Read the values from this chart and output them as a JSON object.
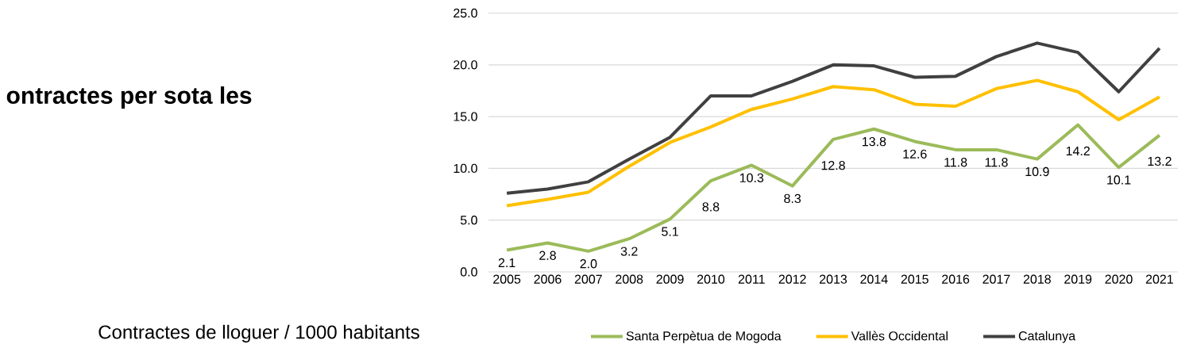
{
  "chart_data": {
    "type": "line",
    "categories": [
      "2005",
      "2006",
      "2007",
      "2008",
      "2009",
      "2010",
      "2011",
      "2012",
      "2013",
      "2014",
      "2015",
      "2016",
      "2017",
      "2018",
      "2019",
      "2020",
      "2021"
    ],
    "series": [
      {
        "name": "Santa Perpètua de Mogoda",
        "color": "#9bbb59",
        "values": [
          2.1,
          2.8,
          2.0,
          3.2,
          5.1,
          8.8,
          10.3,
          8.3,
          12.8,
          13.8,
          12.6,
          11.8,
          11.8,
          10.9,
          14.2,
          10.1,
          13.2
        ],
        "value_labels": [
          "2.1",
          "2.8",
          "2.0",
          "3.2",
          "5.1",
          "8.8",
          "10.3",
          "8.3",
          "12.8",
          "13.8",
          "12.6",
          "11.8",
          "11.8",
          "10.9",
          "14.2",
          "10.1",
          "13.2"
        ]
      },
      {
        "name": "Vallès Occidental",
        "color": "#ffc000",
        "values": [
          6.4,
          7.0,
          7.7,
          10.2,
          12.5,
          14.0,
          15.7,
          16.7,
          17.9,
          17.6,
          16.2,
          16.0,
          17.7,
          18.5,
          17.4,
          14.7,
          16.9
        ]
      },
      {
        "name": "Catalunya",
        "color": "#404040",
        "values": [
          7.6,
          8.0,
          8.7,
          10.9,
          13.0,
          17.0,
          17.0,
          18.4,
          20.0,
          19.9,
          18.8,
          18.9,
          20.8,
          22.1,
          21.2,
          17.4,
          21.6
        ]
      }
    ],
    "ylim": [
      0,
      25
    ],
    "yticks": [
      {
        "value": 0,
        "label": "0.0"
      },
      {
        "value": 5,
        "label": "5.0"
      },
      {
        "value": 10,
        "label": "10.0"
      },
      {
        "value": 15,
        "label": "15.0"
      },
      {
        "value": 20,
        "label": "20.0"
      },
      {
        "value": 25,
        "label": "25.0"
      }
    ],
    "grid": "y",
    "legend": "bottom",
    "marker": "none",
    "line_style": "solid",
    "annotations": [
      "ontractes per sota les",
      "Contractes de lloguer / 1000 habitants"
    ]
  }
}
